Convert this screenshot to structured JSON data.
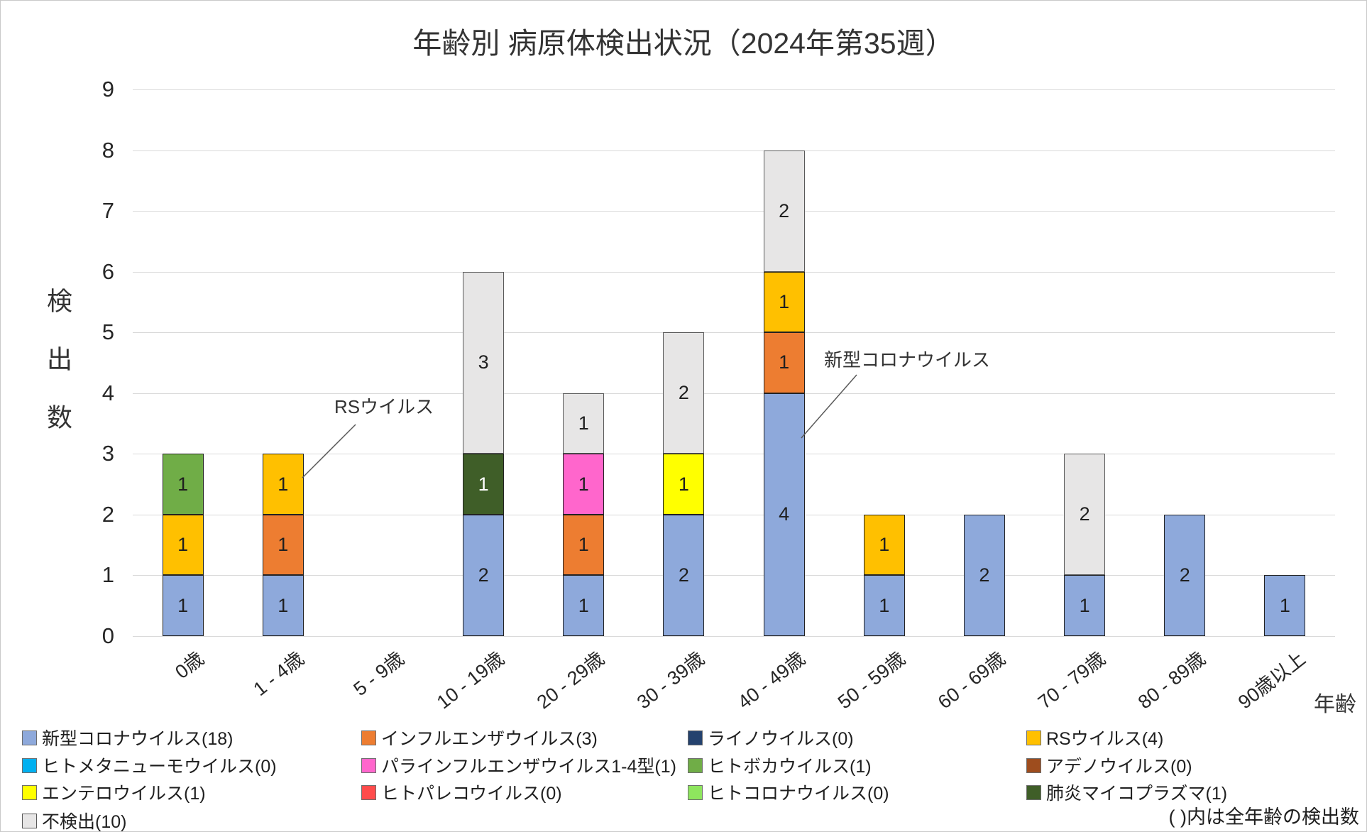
{
  "chart_data": {
    "type": "bar",
    "stacked": true,
    "title": "年齢別 病原体検出状況（2024年第35週）",
    "ylabel": "検出数",
    "xlabel": "年齢",
    "ylim": [
      0,
      9
    ],
    "y_ticks": [
      0,
      1,
      2,
      3,
      4,
      5,
      6,
      7,
      8,
      9
    ],
    "grid": true,
    "legend_position": "bottom",
    "note": "( )内は全年齢の検出数",
    "categories": [
      "0歳",
      "1 - 4歳",
      "5 - 9歳",
      "10 - 19歳",
      "20 - 29歳",
      "30 - 39歳",
      "40 - 49歳",
      "50 - 59歳",
      "60 - 69歳",
      "70 - 79歳",
      "80 - 89歳",
      "90歳以上"
    ],
    "category_totals": [
      3,
      3,
      0,
      6,
      4,
      5,
      8,
      2,
      2,
      3,
      2,
      1
    ],
    "series": [
      {
        "name": "新型コロナウイルス",
        "total": 18,
        "legend_label": "新型コロナウイルス(18)",
        "color": "#8EA9DB",
        "values": [
          1,
          1,
          0,
          2,
          1,
          2,
          4,
          1,
          2,
          1,
          2,
          1
        ]
      },
      {
        "name": "インフルエンザウイルス",
        "total": 3,
        "legend_label": "インフルエンザウイルス(3)",
        "color": "#ED7D31",
        "values": [
          0,
          1,
          0,
          0,
          1,
          0,
          1,
          0,
          0,
          0,
          0,
          0
        ]
      },
      {
        "name": "ライノウイルス",
        "total": 0,
        "legend_label": "ライノウイルス(0)",
        "color": "#24426E",
        "values": [
          0,
          0,
          0,
          0,
          0,
          0,
          0,
          0,
          0,
          0,
          0,
          0
        ]
      },
      {
        "name": "RSウイルス",
        "total": 4,
        "legend_label": "RSウイルス(4)",
        "color": "#FFC000",
        "values": [
          1,
          1,
          0,
          0,
          0,
          0,
          1,
          1,
          0,
          0,
          0,
          0
        ]
      },
      {
        "name": "ヒトメタニューモウイルス",
        "total": 0,
        "legend_label": "ヒトメタニューモウイルス(0)",
        "color": "#00B0F0",
        "values": [
          0,
          0,
          0,
          0,
          0,
          0,
          0,
          0,
          0,
          0,
          0,
          0
        ]
      },
      {
        "name": "パラインフルエンザウイルス1-4型",
        "total": 1,
        "legend_label": "パラインフルエンザウイルス1-4型(1)",
        "color": "#FF66CC",
        "values": [
          0,
          0,
          0,
          0,
          1,
          0,
          0,
          0,
          0,
          0,
          0,
          0
        ]
      },
      {
        "name": "ヒトボカウイルス",
        "total": 1,
        "legend_label": "ヒトボカウイルス(1)",
        "color": "#70AD47",
        "values": [
          1,
          0,
          0,
          0,
          0,
          0,
          0,
          0,
          0,
          0,
          0,
          0
        ]
      },
      {
        "name": "アデノウイルス",
        "total": 0,
        "legend_label": "アデノウイルス(0)",
        "color": "#9E4D1E",
        "values": [
          0,
          0,
          0,
          0,
          0,
          0,
          0,
          0,
          0,
          0,
          0,
          0
        ]
      },
      {
        "name": "エンテロウイルス",
        "total": 1,
        "legend_label": "エンテロウイルス(1)",
        "color": "#FFFF00",
        "values": [
          0,
          0,
          0,
          0,
          0,
          1,
          0,
          0,
          0,
          0,
          0,
          0
        ]
      },
      {
        "name": "ヒトパレコウイルス",
        "total": 0,
        "legend_label": "ヒトパレコウイルス(0)",
        "color": "#FF4B4B",
        "values": [
          0,
          0,
          0,
          0,
          0,
          0,
          0,
          0,
          0,
          0,
          0,
          0
        ]
      },
      {
        "name": "ヒトコロナウイルス",
        "total": 0,
        "legend_label": "ヒトコロナウイルス(0)",
        "color": "#8EE55E",
        "values": [
          0,
          0,
          0,
          0,
          0,
          0,
          0,
          0,
          0,
          0,
          0,
          0
        ]
      },
      {
        "name": "肺炎マイコプラズマ",
        "total": 1,
        "legend_label": "肺炎マイコプラズマ(1)",
        "color": "#3F5E28",
        "label_color": "#FFFFFF",
        "values": [
          0,
          0,
          0,
          1,
          0,
          0,
          0,
          0,
          0,
          0,
          0,
          0
        ]
      },
      {
        "name": "不検出",
        "total": 10,
        "legend_label": "不検出(10)",
        "color": "#E7E6E6",
        "border": "#595959",
        "values": [
          0,
          0,
          0,
          3,
          1,
          2,
          2,
          0,
          0,
          2,
          0,
          0
        ]
      }
    ],
    "annotations": [
      {
        "text": "RSウイルス",
        "target": "1 - 4歳 RSウイルス segment"
      },
      {
        "text": "新型コロナウイルス",
        "target": "40 - 49歳 新型コロナウイルス segment"
      }
    ]
  }
}
